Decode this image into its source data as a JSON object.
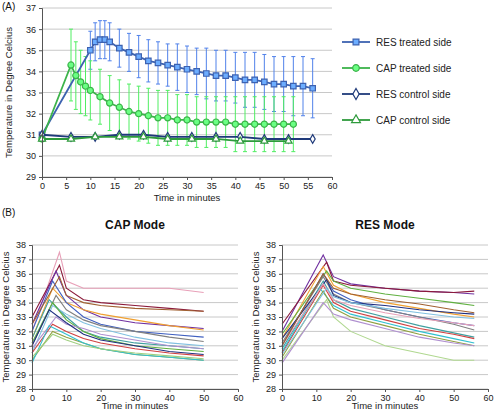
{
  "chart_data": [
    {
      "type": "line",
      "annotation": "(A)",
      "x_label": "Time in minutes",
      "y_label": "Temperature in Degree Celcius",
      "xlim": [
        0,
        60
      ],
      "xticks": [
        0,
        5,
        10,
        15,
        20,
        25,
        30,
        35,
        40,
        45,
        50,
        55,
        60
      ],
      "ylim": [
        29,
        37
      ],
      "yticks": [
        29,
        30,
        31,
        32,
        33,
        34,
        35,
        36,
        37
      ],
      "grid": true,
      "legend": "right",
      "series": [
        {
          "name": "RES treated side",
          "color": "#3d62b0",
          "marker": "square",
          "x": [
            0,
            10,
            11,
            12,
            13,
            14,
            16,
            18,
            20,
            22,
            24,
            26,
            28,
            30,
            32,
            34,
            36,
            38,
            40,
            42,
            44,
            46,
            48,
            50,
            52,
            54,
            56
          ],
          "values": [
            31.0,
            35.0,
            35.4,
            35.5,
            35.5,
            35.4,
            35.1,
            34.9,
            34.7,
            34.5,
            34.4,
            34.3,
            34.2,
            34.1,
            34.0,
            33.9,
            33.8,
            33.8,
            33.7,
            33.6,
            33.6,
            33.5,
            33.4,
            33.4,
            33.3,
            33.3,
            33.2
          ],
          "errors": [
            0,
            0.9,
            0.9,
            0.9,
            0.9,
            0.9,
            0.9,
            0.9,
            1.0,
            1.0,
            1.0,
            1.0,
            1.1,
            1.1,
            1.1,
            1.2,
            1.2,
            1.2,
            1.2,
            1.3,
            1.3,
            1.3,
            1.3,
            1.3,
            1.4,
            1.4,
            1.4
          ]
        },
        {
          "name": "CAP treated side",
          "color": "#3cb34a",
          "marker": "circle",
          "x": [
            0,
            6,
            7,
            8,
            9,
            10,
            12,
            14,
            16,
            18,
            20,
            22,
            24,
            26,
            28,
            30,
            32,
            34,
            36,
            38,
            40,
            42,
            44,
            46,
            48,
            50,
            52
          ],
          "values": [
            30.8,
            34.3,
            33.8,
            33.5,
            33.3,
            33.1,
            32.8,
            32.5,
            32.3,
            32.1,
            32.0,
            31.9,
            31.8,
            31.8,
            31.7,
            31.7,
            31.6,
            31.6,
            31.6,
            31.6,
            31.5,
            31.5,
            31.5,
            31.5,
            31.5,
            31.5,
            31.5
          ],
          "errors": [
            0,
            1.7,
            1.6,
            1.5,
            1.4,
            1.4,
            1.3,
            1.3,
            1.3,
            1.3,
            1.3,
            1.3,
            1.3,
            1.3,
            1.2,
            1.2,
            1.2,
            1.2,
            1.2,
            1.2,
            1.3,
            1.3,
            1.3,
            1.3,
            1.3,
            1.3,
            1.3
          ]
        },
        {
          "name": "RES control side",
          "color": "#1f3a7a",
          "marker": "diamond",
          "x": [
            0,
            6,
            11,
            16,
            21,
            26,
            31,
            36,
            41,
            46,
            51,
            56
          ],
          "values": [
            31.0,
            30.9,
            30.9,
            31.0,
            31.0,
            30.9,
            30.9,
            30.9,
            30.9,
            30.8,
            30.8,
            30.8
          ]
        },
        {
          "name": "CAP control side",
          "color": "#2e9a3c",
          "marker": "triangle",
          "x": [
            0,
            6,
            11,
            16,
            21,
            26,
            31,
            36,
            41,
            46,
            51
          ],
          "values": [
            30.8,
            30.8,
            30.9,
            30.9,
            30.9,
            30.8,
            30.8,
            30.8,
            30.7,
            30.7,
            30.7
          ]
        }
      ]
    },
    {
      "type": "line",
      "annotation": "(B)",
      "title": "CAP Mode",
      "x_label": "Time in minutes",
      "y_label": "Temperature in Degree Celcius",
      "xlim": [
        0,
        60
      ],
      "xticks": [
        0,
        10,
        20,
        30,
        40,
        50,
        60
      ],
      "ylim": [
        28,
        38
      ],
      "yticks": [
        28,
        29,
        30,
        31,
        32,
        33,
        34,
        35,
        36,
        37,
        38
      ],
      "grid": true,
      "series": [
        {
          "color": "#e8a0b8",
          "x": [
            0,
            8,
            10,
            15,
            20,
            30,
            40,
            50
          ],
          "values": [
            32.0,
            37.5,
            35.5,
            35.0,
            35.0,
            35.0,
            35.0,
            34.7
          ]
        },
        {
          "color": "#8b1a3a",
          "x": [
            0,
            8,
            10,
            15,
            20,
            30,
            40,
            50
          ],
          "values": [
            33.0,
            36.6,
            35.0,
            34.2,
            34.0,
            33.8,
            33.6,
            33.4
          ]
        },
        {
          "color": "#7030a0",
          "x": [
            0,
            7,
            10,
            15,
            20,
            30,
            40,
            50
          ],
          "values": [
            32.5,
            36.2,
            34.5,
            33.5,
            33.0,
            32.6,
            32.4,
            32.2
          ]
        },
        {
          "color": "#f0a030",
          "x": [
            0,
            6,
            10,
            15,
            20,
            30,
            40,
            50
          ],
          "values": [
            31.5,
            35.0,
            34.0,
            33.5,
            33.2,
            32.8,
            32.4,
            32.1
          ]
        },
        {
          "color": "#4060c0",
          "x": [
            0,
            6,
            10,
            15,
            20,
            30,
            40,
            50
          ],
          "values": [
            32.0,
            35.5,
            34.0,
            33.0,
            32.5,
            32.0,
            31.8,
            31.6
          ]
        },
        {
          "color": "#808080",
          "x": [
            0,
            7,
            10,
            15,
            20,
            30,
            40,
            50
          ],
          "values": [
            31.0,
            34.5,
            33.5,
            32.8,
            32.4,
            32.0,
            31.6,
            31.3
          ]
        },
        {
          "color": "#40a0a0",
          "x": [
            0,
            5,
            10,
            15,
            20,
            30,
            40,
            50
          ],
          "values": [
            31.5,
            34.2,
            33.0,
            32.0,
            31.6,
            31.2,
            31.0,
            30.8
          ]
        },
        {
          "color": "#80c0e0",
          "x": [
            0,
            6,
            10,
            15,
            20,
            30,
            40,
            50
          ],
          "values": [
            30.5,
            33.8,
            33.2,
            32.6,
            32.2,
            31.6,
            31.2,
            31.0
          ]
        },
        {
          "color": "#60b040",
          "x": [
            0,
            6,
            10,
            15,
            20,
            30,
            40,
            50
          ],
          "values": [
            31.2,
            34.0,
            32.8,
            32.0,
            31.5,
            31.0,
            30.8,
            30.6
          ]
        },
        {
          "color": "#b090d0",
          "x": [
            0,
            7,
            10,
            15,
            20,
            30,
            40,
            50
          ],
          "values": [
            30.8,
            33.0,
            32.5,
            32.2,
            31.8,
            31.4,
            31.0,
            30.8
          ]
        },
        {
          "color": "#203080",
          "x": [
            0,
            5,
            10,
            15,
            20,
            30,
            40,
            50
          ],
          "values": [
            31.0,
            33.5,
            32.6,
            31.8,
            31.4,
            31.0,
            30.6,
            30.4
          ]
        },
        {
          "color": "#d04040",
          "x": [
            0,
            6,
            10,
            15,
            20,
            30,
            40,
            50
          ],
          "values": [
            30.5,
            32.5,
            32.0,
            31.5,
            31.2,
            30.8,
            30.5,
            30.3
          ]
        },
        {
          "color": "#90a040",
          "x": [
            0,
            6,
            10,
            15,
            20,
            30,
            40,
            50
          ],
          "values": [
            30.0,
            32.0,
            31.6,
            31.2,
            30.8,
            30.4,
            30.2,
            30.0
          ]
        },
        {
          "color": "#30c0d0",
          "x": [
            0,
            5,
            10,
            15,
            20,
            30,
            40,
            50
          ],
          "values": [
            29.8,
            32.4,
            31.8,
            31.2,
            30.8,
            30.4,
            30.2,
            30.0
          ]
        },
        {
          "color": "#a06030",
          "x": [
            0,
            8,
            10,
            15,
            20,
            30,
            40,
            50
          ],
          "values": [
            32.5,
            35.8,
            34.5,
            34.0,
            33.8,
            33.6,
            33.5,
            33.4
          ]
        },
        {
          "color": "#a0d080",
          "x": [
            0,
            6,
            10,
            15,
            20,
            30,
            40,
            50
          ],
          "values": [
            30.2,
            31.8,
            31.4,
            31.0,
            30.8,
            30.5,
            30.3,
            30.1
          ]
        }
      ]
    },
    {
      "type": "line",
      "title": "RES Mode",
      "x_label": "Time in minutes",
      "y_label": "Temperature in Degree Celcius",
      "xlim": [
        0,
        60
      ],
      "xticks": [
        0,
        10,
        20,
        30,
        40,
        50,
        60
      ],
      "ylim": [
        28,
        38
      ],
      "yticks": [
        28,
        29,
        30,
        31,
        32,
        33,
        34,
        35,
        36,
        37,
        38
      ],
      "grid": true,
      "series": [
        {
          "color": "#7030a0",
          "x": [
            0,
            12,
            15,
            20,
            30,
            40,
            50,
            56
          ],
          "values": [
            32.0,
            37.3,
            35.8,
            35.3,
            35.0,
            34.8,
            34.7,
            34.6
          ]
        },
        {
          "color": "#8b1a3a",
          "x": [
            0,
            13,
            15,
            20,
            30,
            40,
            50,
            56
          ],
          "values": [
            32.5,
            36.8,
            35.5,
            35.2,
            35.0,
            34.8,
            34.7,
            34.8
          ]
        },
        {
          "color": "#f0a030",
          "x": [
            0,
            12,
            15,
            20,
            30,
            40,
            50,
            56
          ],
          "values": [
            31.5,
            36.5,
            35.2,
            34.6,
            34.0,
            33.6,
            33.2,
            33.0
          ]
        },
        {
          "color": "#60b040",
          "x": [
            0,
            13,
            15,
            20,
            30,
            40,
            50,
            56
          ],
          "values": [
            31.8,
            36.2,
            35.5,
            35.0,
            34.6,
            34.3,
            34.0,
            33.8
          ]
        },
        {
          "color": "#4060c0",
          "x": [
            0,
            12,
            15,
            20,
            30,
            40,
            50,
            56
          ],
          "values": [
            31.0,
            36.0,
            34.8,
            34.2,
            33.5,
            33.0,
            32.6,
            32.4
          ]
        },
        {
          "color": "#808080",
          "x": [
            0,
            12,
            15,
            20,
            30,
            40,
            50,
            56
          ],
          "values": [
            31.2,
            35.8,
            34.6,
            34.0,
            33.5,
            33.0,
            32.5,
            32.1
          ]
        },
        {
          "color": "#40a0a0",
          "x": [
            0,
            12,
            15,
            20,
            30,
            40,
            50,
            56
          ],
          "values": [
            30.8,
            35.5,
            34.2,
            33.6,
            33.0,
            32.4,
            31.9,
            31.6
          ]
        },
        {
          "color": "#203080",
          "x": [
            0,
            13,
            15,
            20,
            30,
            40,
            50,
            56
          ],
          "values": [
            31.5,
            35.6,
            34.5,
            34.0,
            33.8,
            33.5,
            33.3,
            33.2
          ]
        },
        {
          "color": "#d04040",
          "x": [
            0,
            12,
            15,
            20,
            30,
            40,
            50,
            56
          ],
          "values": [
            30.5,
            35.2,
            34.0,
            33.4,
            32.8,
            32.2,
            31.8,
            31.5
          ]
        },
        {
          "color": "#30c0d0",
          "x": [
            0,
            11,
            15,
            20,
            30,
            40,
            50,
            56
          ],
          "values": [
            30.6,
            35.0,
            33.8,
            33.2,
            32.6,
            32.0,
            31.5,
            31.2
          ]
        },
        {
          "color": "#b0d890",
          "x": [
            0,
            13,
            15,
            20,
            30,
            40,
            50,
            56
          ],
          "values": [
            30.0,
            34.2,
            33.0,
            32.0,
            31.0,
            30.5,
            30.0,
            30.0
          ]
        },
        {
          "color": "#e8a0b8",
          "x": [
            0,
            12,
            15,
            20,
            30,
            40,
            50,
            56
          ],
          "values": [
            31.0,
            35.3,
            34.2,
            33.8,
            33.3,
            32.9,
            32.6,
            32.4
          ]
        },
        {
          "color": "#90a040",
          "x": [
            0,
            12,
            15,
            20,
            30,
            40,
            50,
            56
          ],
          "values": [
            30.2,
            34.8,
            33.6,
            33.0,
            32.4,
            31.8,
            31.3,
            31.0
          ]
        },
        {
          "color": "#b090d0",
          "x": [
            0,
            12,
            15,
            20,
            30,
            40,
            50,
            56
          ],
          "values": [
            29.8,
            34.0,
            33.2,
            32.8,
            32.2,
            31.6,
            31.2,
            31.0
          ]
        },
        {
          "color": "#80c0e0",
          "x": [
            0,
            13,
            15,
            20,
            30,
            40,
            50,
            56
          ],
          "values": [
            30.4,
            35.0,
            34.4,
            34.0,
            33.6,
            33.3,
            33.0,
            32.9
          ]
        },
        {
          "color": "#a06030",
          "x": [
            0,
            12,
            15,
            20,
            30,
            40,
            50,
            56
          ],
          "values": [
            31.0,
            36.0,
            35.0,
            34.6,
            34.2,
            33.9,
            33.5,
            33.3
          ]
        }
      ]
    }
  ]
}
